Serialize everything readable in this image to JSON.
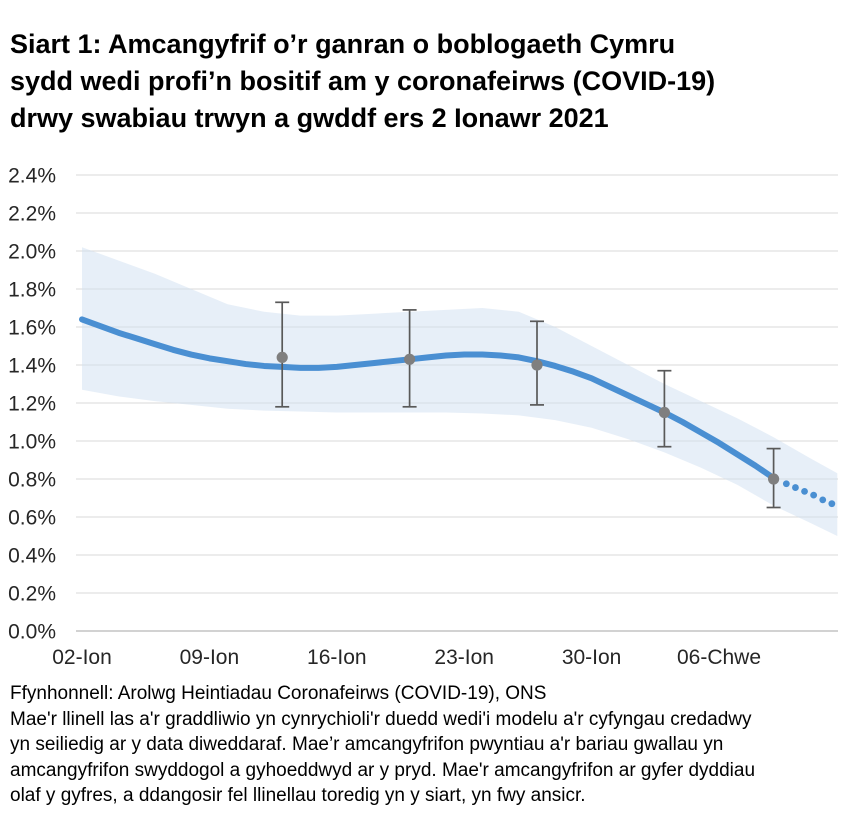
{
  "title": "Siart 1: Amcangyfrif o’r ganran o boblogaeth Cymru\nsydd wedi profi’n bositif am y coronafeirws (COVID-19)\ndrwy swabiau trwyn a gwddf ers 2 Ionawr 2021",
  "footer": {
    "source": "Ffynhonnell: Arolwg Heintiadau Coronafeirws (COVID-19), ONS",
    "note": "Mae'r llinell las a'r graddliwio yn cynrychioli'r duedd wedi'i modelu a'r cyfyngau credadwy\nyn seiliedig ar y data diweddaraf. Mae’r amcangyfrifon pwyntiau a'r bariau gwallau yn\namcangyfrifon swyddogol a gyhoeddwyd ar y pryd. Mae'r amcangyfrifon ar gyfer dyddiau\nolaf y gyfres, a ddangosir fel llinellau toredig yn y siart, yn fwy ansicr."
  },
  "chart_data": {
    "type": "line",
    "title": "Amcangyfrif o’r ganran o boblogaeth Cymru sydd wedi profi’n bositif am y coronafeirws",
    "ylabel": "",
    "xlabel": "",
    "ylim": [
      0.0,
      2.4
    ],
    "xlim_days": [
      0,
      41.5
    ],
    "x_unit": "dyddiau ers 02-Ion-2021",
    "grid": "horizontal-only",
    "legend": "none",
    "y_axis": {
      "format": "percent",
      "ticks": [
        {
          "value": 0.0,
          "label": "0.0%"
        },
        {
          "value": 0.2,
          "label": "0.2%"
        },
        {
          "value": 0.4,
          "label": "0.4%"
        },
        {
          "value": 0.6,
          "label": "0.6%"
        },
        {
          "value": 0.8,
          "label": "0.8%"
        },
        {
          "value": 1.0,
          "label": "1.0%"
        },
        {
          "value": 1.2,
          "label": "1.2%"
        },
        {
          "value": 1.4,
          "label": "1.4%"
        },
        {
          "value": 1.6,
          "label": "1.6%"
        },
        {
          "value": 1.8,
          "label": "1.8%"
        },
        {
          "value": 2.0,
          "label": "2.0%"
        },
        {
          "value": 2.2,
          "label": "2.2%"
        },
        {
          "value": 2.4,
          "label": "2.4%"
        }
      ]
    },
    "x_axis": {
      "ticks": [
        {
          "day": 0,
          "label": "02-Ion"
        },
        {
          "day": 7,
          "label": "09-Ion"
        },
        {
          "day": 14,
          "label": "16-Ion"
        },
        {
          "day": 21,
          "label": "23-Ion"
        },
        {
          "day": 28,
          "label": "30-Ion"
        },
        {
          "day": 35,
          "label": "06-Chwe"
        }
      ]
    },
    "series": [
      {
        "name": "cyfwng-credadwy-band",
        "type": "area-band",
        "x_days": [
          0,
          2,
          4,
          6,
          8,
          10,
          12,
          14,
          16,
          18,
          20,
          22,
          24,
          26,
          28,
          30,
          32,
          34,
          36,
          38,
          40,
          41.5
        ],
        "upper": [
          2.02,
          1.95,
          1.88,
          1.8,
          1.72,
          1.68,
          1.66,
          1.66,
          1.67,
          1.68,
          1.69,
          1.7,
          1.68,
          1.6,
          1.5,
          1.4,
          1.3,
          1.21,
          1.12,
          1.02,
          0.91,
          0.83
        ],
        "lower": [
          1.27,
          1.235,
          1.21,
          1.19,
          1.17,
          1.16,
          1.155,
          1.15,
          1.15,
          1.15,
          1.15,
          1.145,
          1.135,
          1.11,
          1.07,
          1.01,
          0.94,
          0.86,
          0.77,
          0.66,
          0.57,
          0.5
        ]
      },
      {
        "name": "tuedd-wedi-modelu",
        "type": "line",
        "x_days": [
          0,
          1,
          2,
          3,
          4,
          5,
          6,
          7,
          8,
          9,
          10,
          11,
          12,
          13,
          14,
          15,
          16,
          17,
          18,
          19,
          20,
          21,
          22,
          23,
          24,
          25,
          26,
          27,
          28,
          29,
          30,
          31,
          32,
          33,
          34,
          35,
          36,
          37,
          38
        ],
        "y": [
          1.64,
          1.605,
          1.57,
          1.54,
          1.51,
          1.48,
          1.455,
          1.435,
          1.42,
          1.405,
          1.395,
          1.39,
          1.385,
          1.385,
          1.39,
          1.4,
          1.41,
          1.42,
          1.43,
          1.44,
          1.45,
          1.455,
          1.455,
          1.45,
          1.44,
          1.42,
          1.395,
          1.365,
          1.33,
          1.285,
          1.24,
          1.195,
          1.15,
          1.1,
          1.045,
          0.99,
          0.93,
          0.87,
          0.805
        ]
      },
      {
        "name": "tuedd-dyddiau-olaf-toredig",
        "type": "dotted-line",
        "x_days": [
          38.7,
          39.2,
          39.7,
          40.2,
          40.7,
          41.2
        ],
        "y": [
          0.775,
          0.755,
          0.735,
          0.715,
          0.69,
          0.67
        ]
      },
      {
        "name": "amcangyfrifon-swyddogol",
        "type": "scatter-errorbar",
        "x_days": [
          11,
          18,
          25,
          32,
          38
        ],
        "y": [
          1.44,
          1.43,
          1.4,
          1.15,
          0.8
        ],
        "ci_lower": [
          1.18,
          1.18,
          1.19,
          0.97,
          0.65
        ],
        "ci_upper": [
          1.73,
          1.69,
          1.63,
          1.37,
          0.96
        ]
      }
    ],
    "colors": {
      "line": "#4A8FD2",
      "band": "#CFE0F1",
      "grid": "#D9D9D9",
      "axis": "#C4C4C4",
      "errorbar": "#595959",
      "point": "#7F7F7F",
      "tick_text": "#262626"
    }
  }
}
